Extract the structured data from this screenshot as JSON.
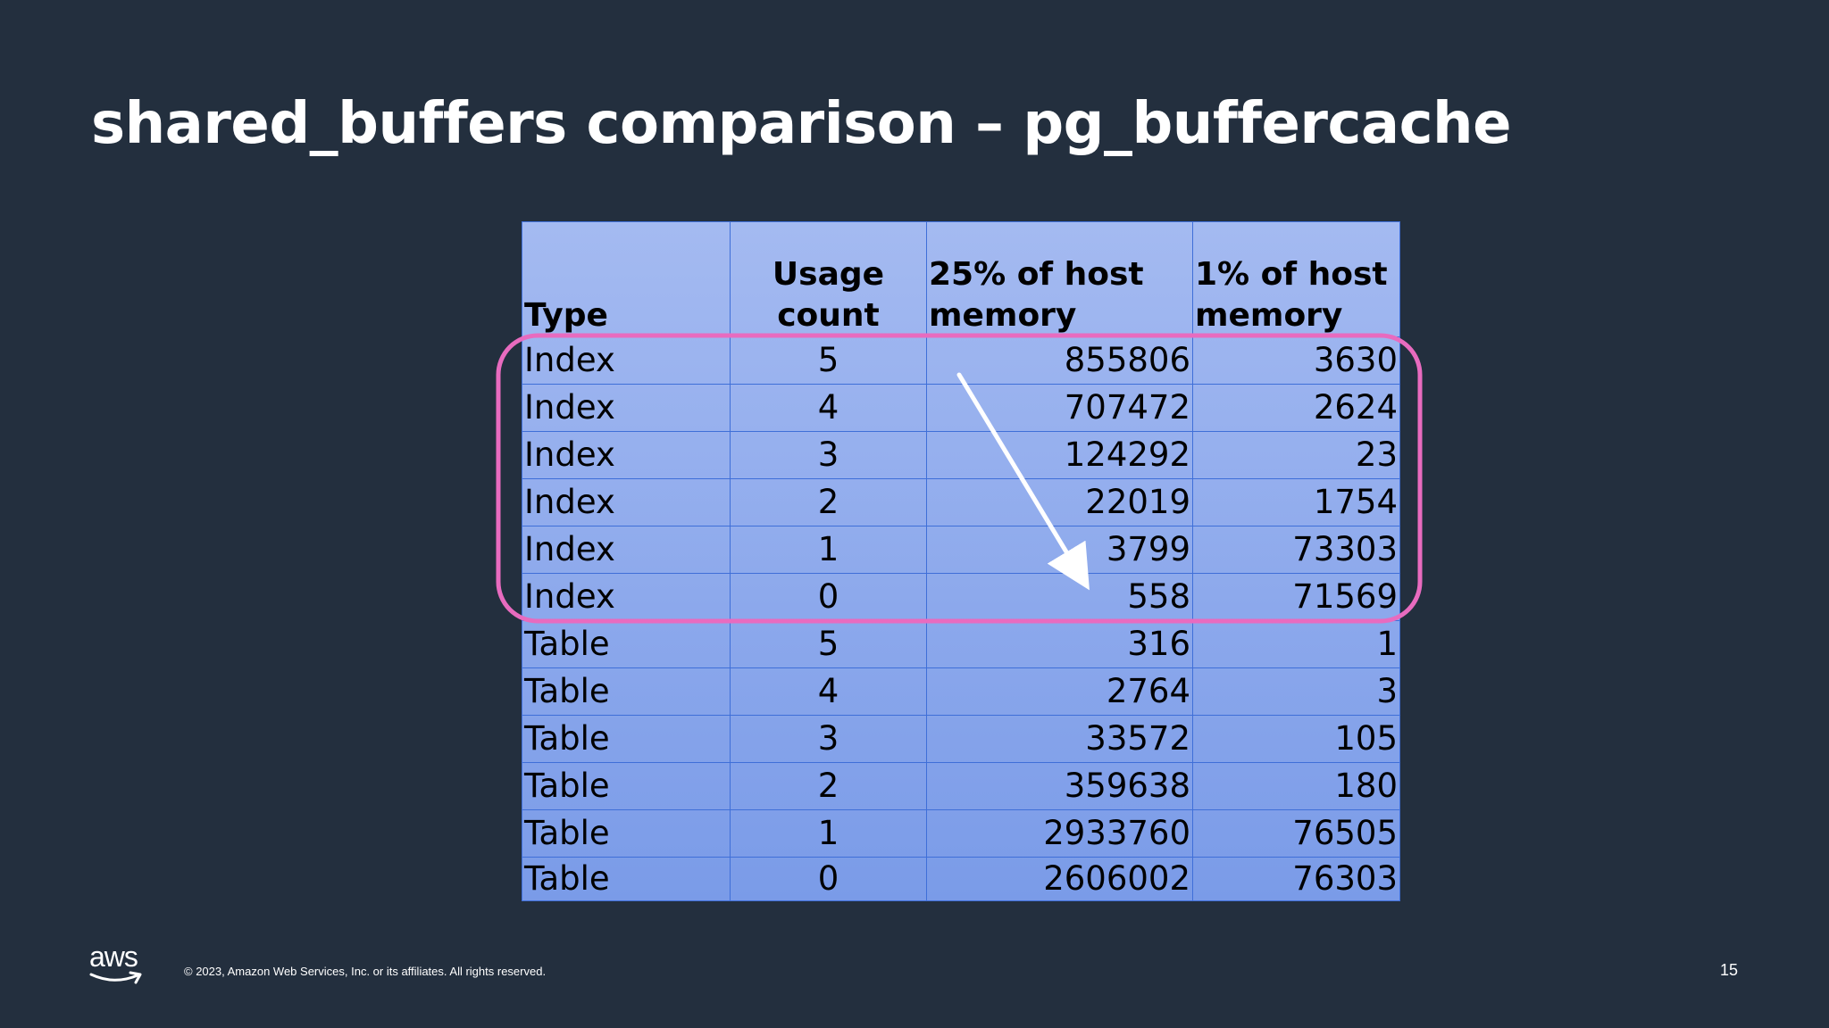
{
  "slide": {
    "title": "shared_buffers comparison – pg_buffercache",
    "copyright": "© 2023, Amazon Web Services, Inc. or its affiliates. All rights reserved.",
    "page_number": "15",
    "logo_text": "aws"
  },
  "table": {
    "headers": [
      "Type",
      "Usage\ncount",
      "25% of host\nmemory",
      "1% of host\nmemory"
    ],
    "rows": [
      [
        "Index",
        "5",
        "855806",
        "3630"
      ],
      [
        "Index",
        "4",
        "707472",
        "2624"
      ],
      [
        "Index",
        "3",
        "124292",
        "23"
      ],
      [
        "Index",
        "2",
        "22019",
        "1754"
      ],
      [
        "Index",
        "1",
        "3799",
        "73303"
      ],
      [
        "Index",
        "0",
        "558",
        "71569"
      ],
      [
        "Table",
        "5",
        "316",
        "1"
      ],
      [
        "Table",
        "4",
        "2764",
        "3"
      ],
      [
        "Table",
        "3",
        "33572",
        "105"
      ],
      [
        "Table",
        "2",
        "359638",
        "180"
      ],
      [
        "Table",
        "1",
        "2933760",
        "76505"
      ],
      [
        "Table",
        "0",
        "2606002",
        "76303"
      ]
    ]
  },
  "annotations": {
    "highlight_color": "#e86bbf",
    "arrow_color": "#ffffff"
  },
  "colors": {
    "background": "#232f3e",
    "table_top": "#a4baf1",
    "table_bottom": "#7a9be8",
    "grid": "#3f6fd8"
  }
}
